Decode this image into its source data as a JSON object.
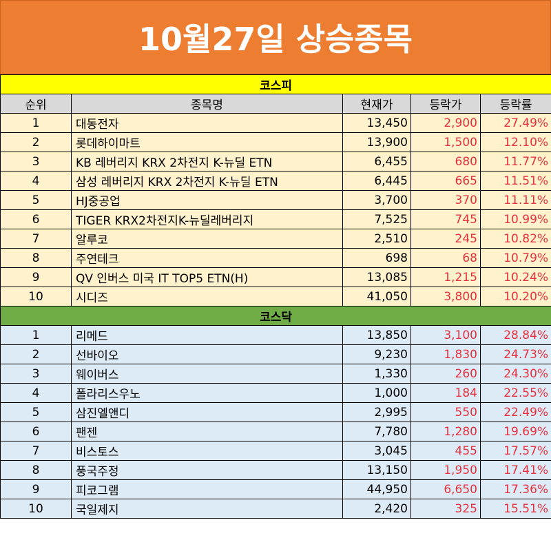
{
  "title": "10월27일 상승종목",
  "sections": {
    "kospi": "코스피",
    "kosdaq": "코스닥"
  },
  "headers": {
    "rank": "순위",
    "name": "종목명",
    "price": "현재가",
    "change": "등락가",
    "rate": "등락률"
  },
  "kospi_rows": [
    {
      "rank": "1",
      "name": "대동전자",
      "price": "13,450",
      "change": "2,900",
      "rate": "27.49%"
    },
    {
      "rank": "2",
      "name": "롯데하이마트",
      "price": "13,900",
      "change": "1,500",
      "rate": "12.10%"
    },
    {
      "rank": "3",
      "name": "KB 레버리지 KRX 2차전지 K-뉴딜 ETN",
      "price": "6,455",
      "change": "680",
      "rate": "11.77%"
    },
    {
      "rank": "4",
      "name": "삼성 레버리지 KRX 2차전지 K-뉴딜 ETN",
      "price": "6,445",
      "change": "665",
      "rate": "11.51%"
    },
    {
      "rank": "5",
      "name": "HJ중공업",
      "price": "3,700",
      "change": "370",
      "rate": "11.11%"
    },
    {
      "rank": "6",
      "name": "TIGER KRX2차전지K-뉴딜레버리지",
      "price": "7,525",
      "change": "745",
      "rate": "10.99%"
    },
    {
      "rank": "7",
      "name": "알루코",
      "price": "2,510",
      "change": "245",
      "rate": "10.82%"
    },
    {
      "rank": "8",
      "name": "주연테크",
      "price": "698",
      "change": "68",
      "rate": "10.79%"
    },
    {
      "rank": "9",
      "name": "QV 인버스 미국 IT TOP5 ETN(H)",
      "price": "13,085",
      "change": "1,215",
      "rate": "10.24%"
    },
    {
      "rank": "10",
      "name": "시디즈",
      "price": "41,050",
      "change": "3,800",
      "rate": "10.20%"
    }
  ],
  "kosdaq_rows": [
    {
      "rank": "1",
      "name": "리메드",
      "price": "13,850",
      "change": "3,100",
      "rate": "28.84%"
    },
    {
      "rank": "2",
      "name": "선바이오",
      "price": "9,230",
      "change": "1,830",
      "rate": "24.73%"
    },
    {
      "rank": "3",
      "name": "웨이버스",
      "price": "1,330",
      "change": "260",
      "rate": "24.30%"
    },
    {
      "rank": "4",
      "name": "폴라리스우노",
      "price": "1,000",
      "change": "184",
      "rate": "22.55%"
    },
    {
      "rank": "5",
      "name": "삼진엘앤디",
      "price": "2,995",
      "change": "550",
      "rate": "22.49%"
    },
    {
      "rank": "6",
      "name": "팬젠",
      "price": "7,780",
      "change": "1,280",
      "rate": "19.69%"
    },
    {
      "rank": "7",
      "name": "비스토스",
      "price": "3,045",
      "change": "455",
      "rate": "17.57%"
    },
    {
      "rank": "8",
      "name": "풍국주정",
      "price": "13,150",
      "change": "1,950",
      "rate": "17.41%"
    },
    {
      "rank": "9",
      "name": "피코그램",
      "price": "44,950",
      "change": "6,650",
      "rate": "17.36%"
    },
    {
      "rank": "10",
      "name": "국일제지",
      "price": "2,420",
      "change": "325",
      "rate": "15.51%"
    }
  ],
  "colors": {
    "title_bg": "#ED7D31",
    "kospi_header": "#FFFF00",
    "kosdaq_header": "#70AD47",
    "kospi_row": "#FFF2CC",
    "kosdaq_row": "#DDEBF7",
    "up_text": "#E8313E"
  }
}
